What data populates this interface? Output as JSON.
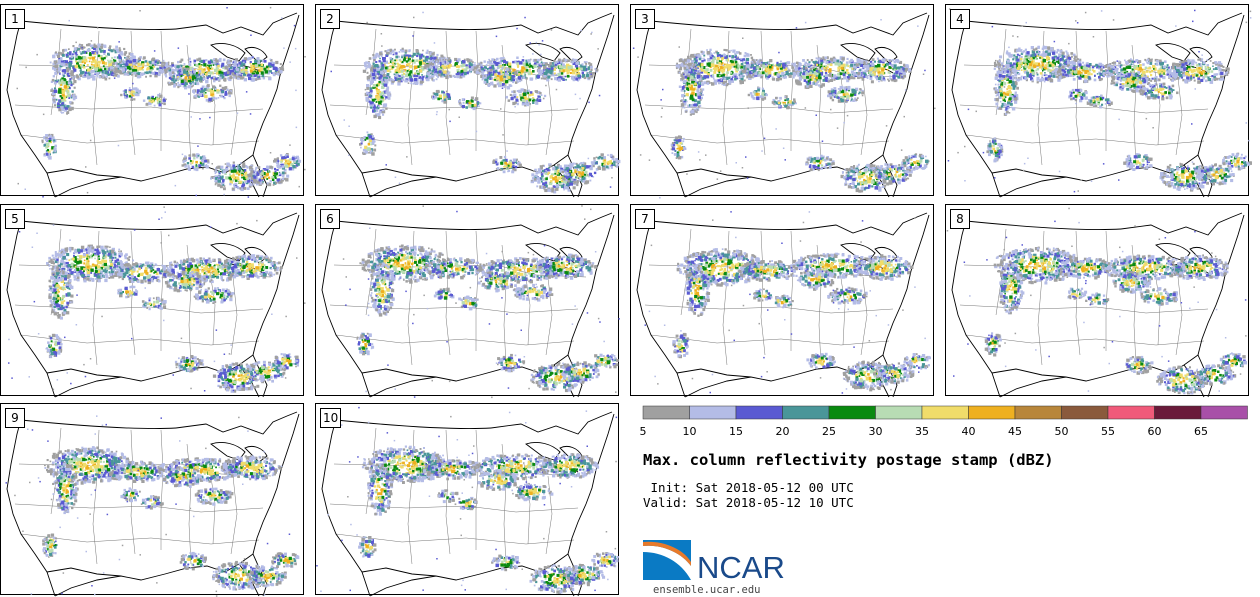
{
  "panels": [
    {
      "label": "1",
      "seed": 11
    },
    {
      "label": "2",
      "seed": 23
    },
    {
      "label": "3",
      "seed": 37
    },
    {
      "label": "4",
      "seed": 41
    },
    {
      "label": "5",
      "seed": 53
    },
    {
      "label": "6",
      "seed": 67
    },
    {
      "label": "7",
      "seed": 71
    },
    {
      "label": "8",
      "seed": 89
    },
    {
      "label": "9",
      "seed": 97
    },
    {
      "label": "10",
      "seed": 103
    }
  ],
  "legend": {
    "colors": [
      "#a0a0a0",
      "#b4bce6",
      "#5a5ad2",
      "#4a9699",
      "#0a8a10",
      "#b8dcb4",
      "#f0dc6a",
      "#eeb020",
      "#b8863a",
      "#8a5a3c",
      "#f05a7a",
      "#6a1a3a",
      "#a850a8"
    ],
    "ticks": [
      "5",
      "10",
      "15",
      "20",
      "25",
      "30",
      "35",
      "40",
      "45",
      "50",
      "55",
      "60",
      "65"
    ]
  },
  "title": "Max. column reflectivity postage stamp (dBZ)",
  "init_text": " Init: Sat 2018-05-12 00 UTC",
  "valid_text": "Valid: Sat 2018-05-12 10 UTC",
  "logo": {
    "text": "NCAR",
    "color": "#1a4a8a"
  },
  "url": "ensemble.ucar.edu"
}
